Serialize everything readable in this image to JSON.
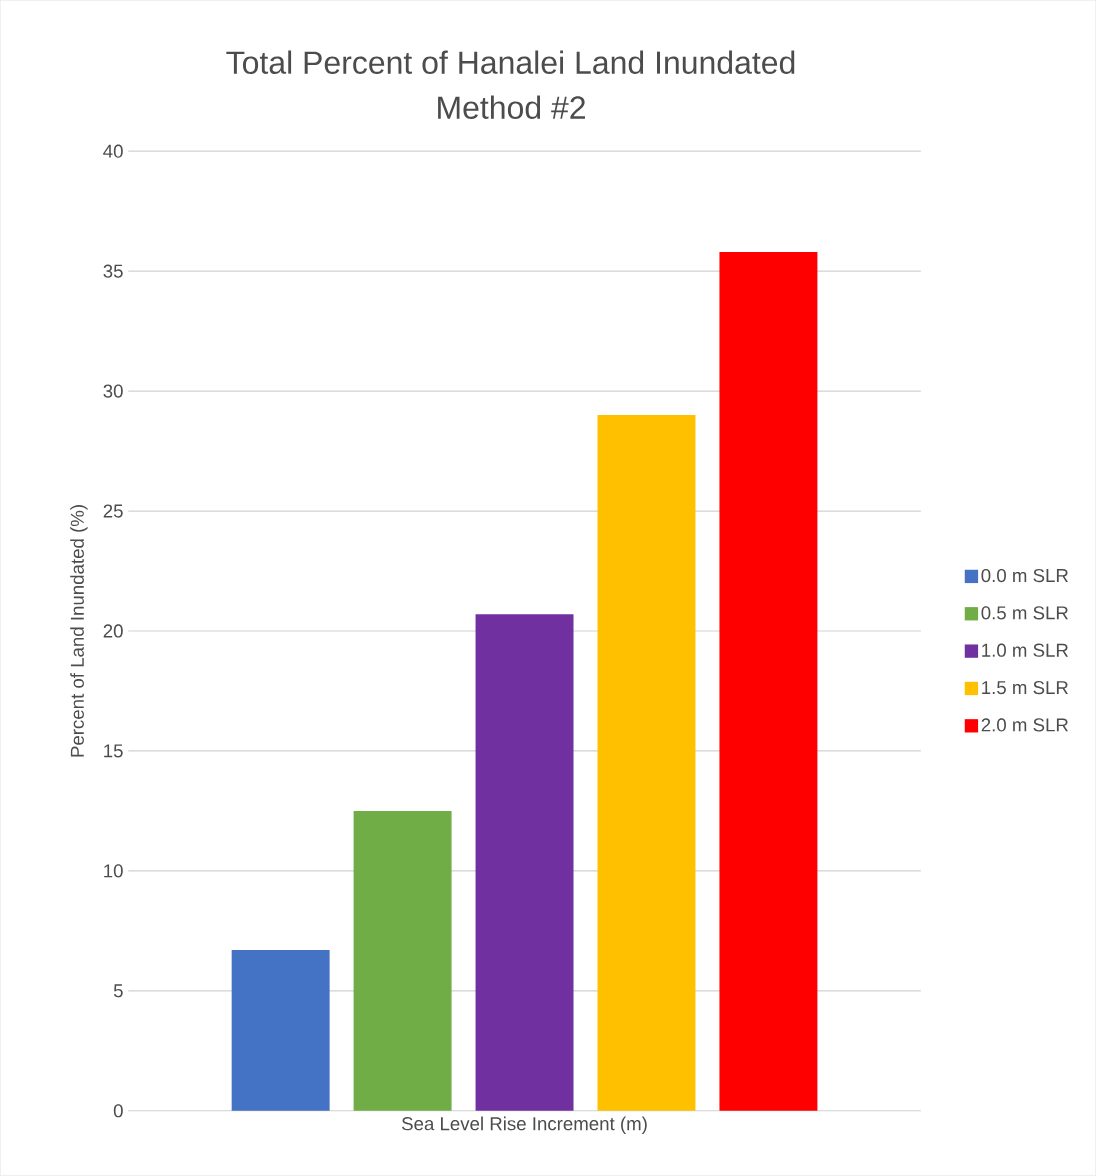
{
  "chart_data": {
    "type": "bar",
    "title": "Total Percent of Hanalei Land Inundated",
    "subtitle": "Method #2",
    "xlabel": "Sea Level Rise Increment (m)",
    "ylabel": "Percent of Land Inundated (%)",
    "categories": [
      null
    ],
    "series": [
      {
        "name": "0.0 m SLR",
        "color": "#4472c4",
        "values": [
          6.7
        ]
      },
      {
        "name": "0.5 m SLR",
        "color": "#70ad47",
        "values": [
          12.5
        ]
      },
      {
        "name": "1.0 m SLR",
        "color": "#7030a0",
        "values": [
          20.7
        ]
      },
      {
        "name": "1.5 m SLR",
        "color": "#ffc000",
        "values": [
          29.0
        ]
      },
      {
        "name": "2.0 m SLR",
        "color": "#ff0000",
        "values": [
          35.8
        ]
      }
    ],
    "ylim": [
      0,
      40
    ],
    "yticks": [
      0,
      5,
      10,
      15,
      20,
      25,
      30,
      35,
      40
    ],
    "grid": "y",
    "legend": "right"
  }
}
